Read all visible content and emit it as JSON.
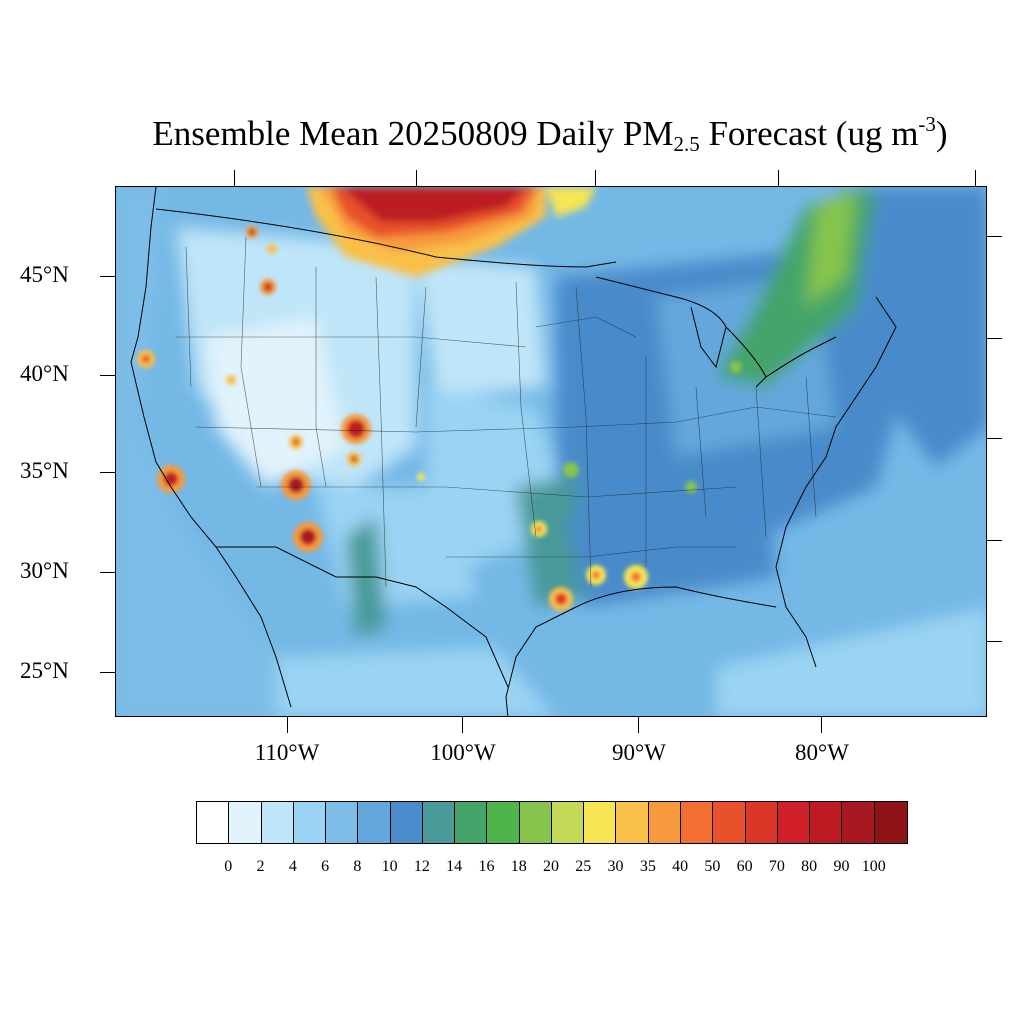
{
  "title": {
    "prefix": "Ensemble Mean 20250809 Daily PM",
    "subscript": "2.5",
    "middle": " Forecast (ug m",
    "superscript": "-3",
    "suffix": ")"
  },
  "map": {
    "projection": "lambert-conformal",
    "region": "CONUS",
    "variable": "PM2.5 daily mean concentration",
    "background_level_color": "#6fb6e4",
    "hotspots": [
      {
        "region": "southern-canada-smoke-plume",
        "level": "80-100"
      },
      {
        "region": "northern-idaho-montana",
        "level": "60-100"
      },
      {
        "region": "northern-california",
        "level": "40-60"
      },
      {
        "region": "southern-california",
        "level": "60-100"
      },
      {
        "region": "colorado-northern-new-mexico",
        "level": "60-100"
      },
      {
        "region": "northern-arizona",
        "level": "60-100"
      },
      {
        "region": "southern-arizona",
        "level": "60-100"
      },
      {
        "region": "southeast-texas-louisiana",
        "level": "30-70"
      }
    ]
  },
  "lat_labels": [
    "45°N",
    "40°N",
    "35°N",
    "30°N",
    "25°N"
  ],
  "lon_labels": [
    "110°W",
    "100°W",
    "90°W",
    "80°W"
  ],
  "colorbar": {
    "labels": [
      "0",
      "2",
      "4",
      "6",
      "8",
      "10",
      "12",
      "14",
      "16",
      "18",
      "20",
      "25",
      "30",
      "35",
      "40",
      "50",
      "60",
      "70",
      "80",
      "90",
      "100"
    ],
    "colors": [
      "#ffffff",
      "#e1f3fc",
      "#bfe5f8",
      "#9ad3f3",
      "#7dbde8",
      "#64a7dc",
      "#4a8bca",
      "#4a9a9a",
      "#44a46a",
      "#4db54a",
      "#86c44c",
      "#c4d957",
      "#f7e553",
      "#f9c04a",
      "#f79a3e",
      "#f26e32",
      "#e8512c",
      "#dc3628",
      "#d0202a",
      "#bd1a24",
      "#a81820",
      "#8f1418"
    ]
  }
}
